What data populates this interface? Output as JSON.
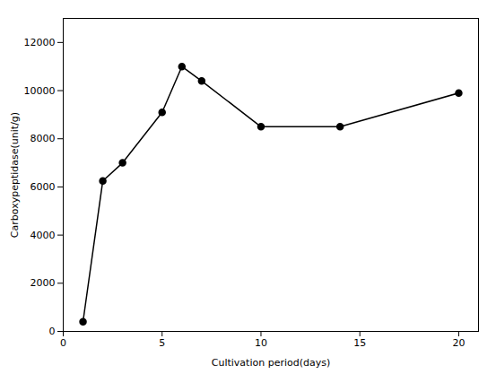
{
  "chart_data": {
    "type": "line",
    "x": [
      1,
      2,
      3,
      5,
      6,
      7,
      10,
      14,
      20
    ],
    "values": [
      400,
      6250,
      7000,
      9100,
      11000,
      10400,
      8500,
      8500,
      9900
    ],
    "xlabel": "Cultivation period(days)",
    "ylabel": "Carboxypeptidase(unit/g)",
    "xlim": [
      0,
      21
    ],
    "ylim": [
      0,
      13000
    ],
    "xticks": [
      0,
      5,
      10,
      15,
      20
    ],
    "yticks": [
      0,
      2000,
      4000,
      6000,
      8000,
      10000,
      12000
    ],
    "color": "#000000",
    "marker": "circle",
    "grid": false
  }
}
